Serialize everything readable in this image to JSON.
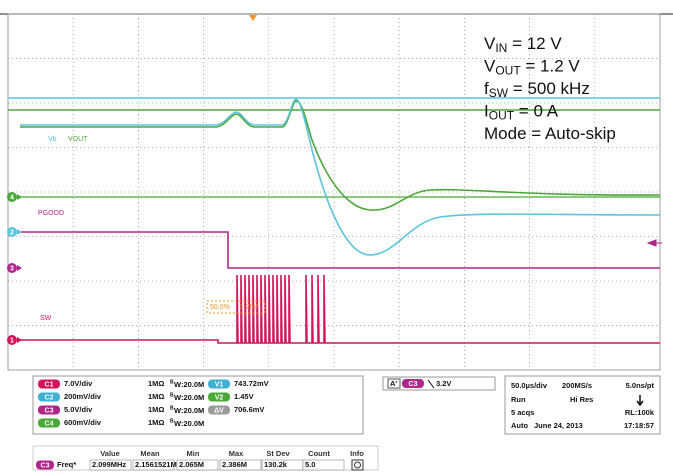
{
  "annotation": [
    {
      "base": "V",
      "sub": "IN",
      "text": " = 12 V"
    },
    {
      "base": "V",
      "sub": "OUT",
      "text": " = 1.2 V"
    },
    {
      "base": "f",
      "sub": "SW",
      "text": " = 500 kHz"
    },
    {
      "base": "I",
      "sub": "OUT",
      "text": " = 0 A"
    },
    {
      "text": "Mode = Auto-skip"
    }
  ],
  "trace_labels": {
    "vb": "Vb",
    "vout": "VOUT",
    "pgood": "PGOOD",
    "sw": "SW"
  },
  "cursor_box": {
    "level": "50.0%",
    "value": "1.26V"
  },
  "channel_markers": [
    "4",
    "2",
    "3",
    "1"
  ],
  "channels": [
    {
      "id": "C1",
      "color": "#d4145a",
      "scale": "7.0V/div",
      "impedance": "1MΩ",
      "bw_label": "B",
      "bw": "W:20.0M"
    },
    {
      "id": "C2",
      "color": "#3fb0d4",
      "scale": "200mV/div",
      "impedance": "1MΩ",
      "bw_label": "B",
      "bw": "W:20.0M"
    },
    {
      "id": "C3",
      "color": "#b0268a",
      "scale": "5.0V/div",
      "impedance": "1MΩ",
      "bw_label": "B",
      "bw": "W:20.0M"
    },
    {
      "id": "C4",
      "color": "#4aa838",
      "scale": "600mV/div",
      "impedance": "1MΩ",
      "bw_label": "B",
      "bw": "W:20.0M"
    }
  ],
  "cursors": [
    {
      "id": "V1",
      "color": "#3fb0d4",
      "value": "743.72mV"
    },
    {
      "id": "V2",
      "color": "#4aa838",
      "value": "1.45V"
    },
    {
      "id": "ΔV",
      "color": "#9a9a9a",
      "value": "706.6mV"
    }
  ],
  "trigger": {
    "mode": "A'",
    "channel": "C3",
    "level": "3.2V"
  },
  "acquisition": {
    "timebase": "50.0µs/div",
    "sample_rate": "200MS/s",
    "resolution": "5.0ns/pt",
    "state": "Run",
    "mode": "Hi Res",
    "acqs": "5 acqs",
    "record_length": "RL:100k",
    "trigger_mode": "Auto",
    "date": "June 24, 2013",
    "time": "17:18:57"
  },
  "measurements": {
    "headers": [
      "Value",
      "Mean",
      "Min",
      "Max",
      "St Dev",
      "Count",
      "Info"
    ],
    "rows": [
      {
        "channel": "C3",
        "name": "Freq*",
        "cells": [
          "2.099MHz",
          "2.1561521M",
          "2.065M",
          "2.386M",
          "130.2k",
          "5.0"
        ]
      }
    ]
  }
}
